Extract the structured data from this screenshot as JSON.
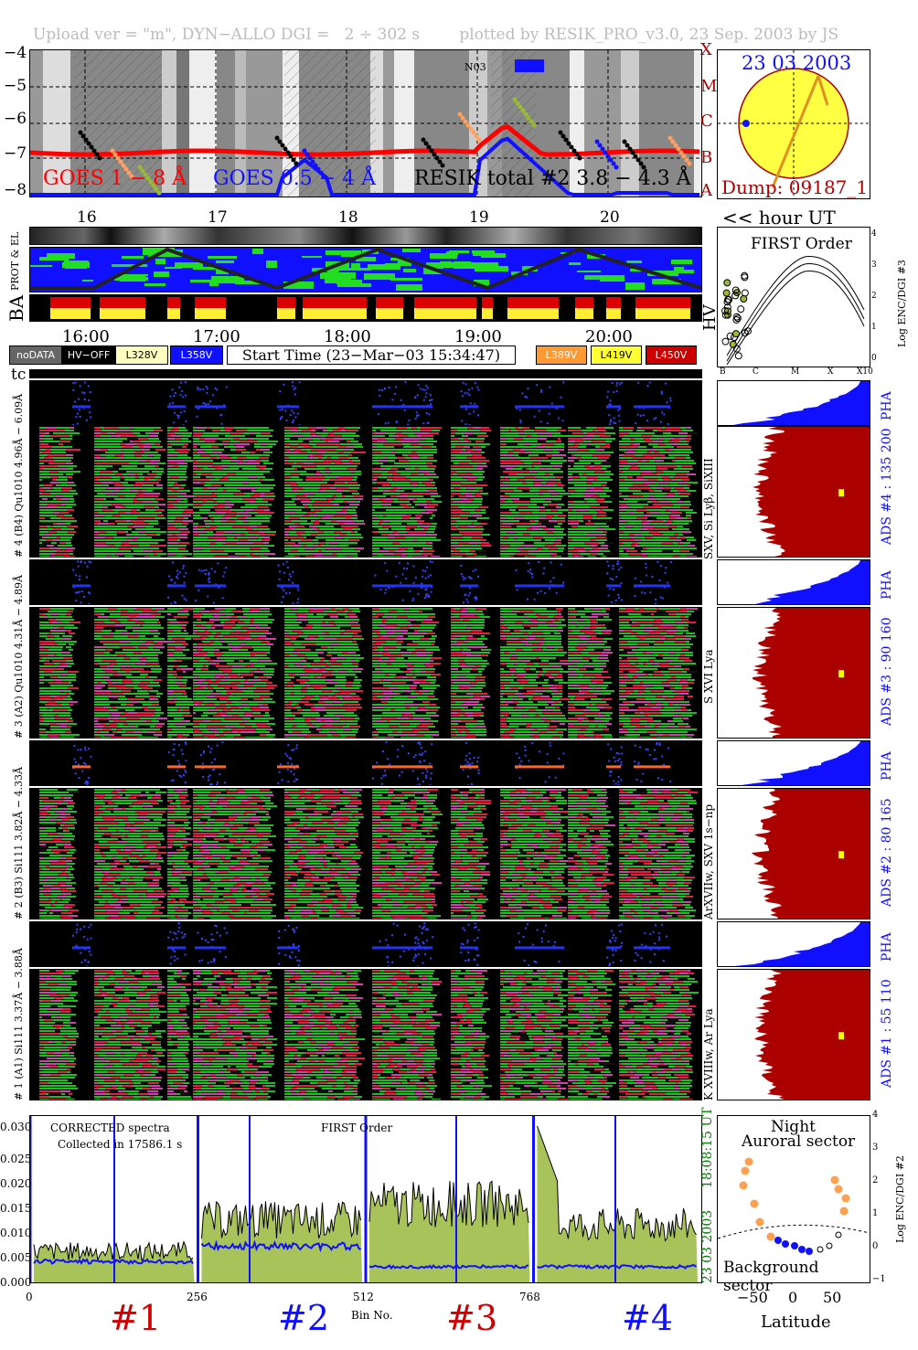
{
  "header": {
    "title": "Upload ver = \"m\", DYN−ALLO DGI =   2 ÷ 302 s        plotted by RESIK_PRO_v3.0, 23 Sep. 2003 by JS"
  },
  "goes": {
    "yticks": [
      "−4",
      "−5",
      "−6",
      "−7",
      "−8"
    ],
    "classes": [
      "X",
      "M",
      "C",
      "B",
      "A"
    ],
    "legend_goes18": "GOES 1 − 8 Å",
    "legend_goes054": "GOES 0.5 − 4 Å",
    "legend_resik": "RESIK total #2  3.8 − 4.3 Å",
    "marker": "N03",
    "colors": {
      "goes18": "#ff0000",
      "goes054": "#1010ff",
      "resik": "#000000"
    }
  },
  "sun": {
    "date": "23 03 2003",
    "dump": "Dump: 09187_1",
    "fill": "#ffff44"
  },
  "hours_top": [
    "16",
    "17",
    "18",
    "19",
    "20"
  ],
  "hour_ut_label": "<< hour UT",
  "band_labels": {
    "prot_el": "PROT & EL",
    "ba": "BA",
    "hv": "HV",
    "tc": "tc"
  },
  "hours_mid": [
    "16:00",
    "17:00",
    "18:00",
    "19:00",
    "20:00"
  ],
  "legend": {
    "nodata": "noDATA",
    "hvoff": "HV−OFF",
    "l328": "L328V",
    "l358": "L358V",
    "start": "Start Time (23−Mar−03 15:34:47)",
    "l389": "L389V",
    "l419": "L419V",
    "l450": "L450V"
  },
  "first_order": {
    "title": "FIRST Order",
    "yaxis": "Log ENC/DGI #3",
    "yticks": [
      "0",
      "1",
      "2",
      "3",
      "4"
    ],
    "xticks": [
      "B",
      "C",
      "M",
      "X",
      "X10"
    ]
  },
  "channels": [
    {
      "pha_label": "# 4 (B4)  Qu1010  4.96Å − 6.09Å",
      "ads_label": "ADS #4 :   135 200",
      "lines": "SXV, Si Lyβ, SiXIII"
    },
    {
      "pha_label": "# 3 (A2)  Qu1010  4.31Å − 4.89Å",
      "ads_label": "ADS #3 :    90 160",
      "lines": "S XVI Lya"
    },
    {
      "pha_label": "# 2 (B3)  Si111  3.82Å − 4.33Å",
      "ads_label": "ADS #2 :    80 165",
      "lines": "ArXVIIw, SXV 1s−np"
    },
    {
      "pha_label": "# 1 (A1)  Si111  3.37Å − 3.88Å",
      "ads_label": "ADS #1 :    55 110",
      "lines": "K XVIIIw, Ar Lya"
    }
  ],
  "pha_label": "PHA",
  "spectrum": {
    "title_left": "CORRECTED spectra",
    "collected": "Collected in 17586.1 s",
    "title_mid": "FIRST Order",
    "time_right": "18:08:15 UT",
    "date_right": "23 03 2003",
    "yticks": [
      "0.000",
      "0.005",
      "0.010",
      "0.015",
      "0.020",
      "0.025",
      "0.030"
    ],
    "xticks": [
      "0",
      "256",
      "512",
      "768"
    ],
    "xlabel": "Bin No."
  },
  "channel_marks": [
    {
      "label": "#1",
      "color": "#d00000"
    },
    {
      "label": "#2",
      "color": "#1010ff"
    },
    {
      "label": "#3",
      "color": "#d00000"
    },
    {
      "label": "#4",
      "color": "#1010ff"
    }
  ],
  "sector": {
    "title1": "Night",
    "title2": "Auroral sector",
    "bottom": "Background sector",
    "yaxis": "Log ENC/DGI #2",
    "yticks": [
      "−1",
      "0",
      "1",
      "2",
      "3",
      "4"
    ],
    "xticks": [
      "−50",
      "0",
      "50"
    ],
    "xlabel": "Latitude"
  },
  "chart_data": {
    "type": "line",
    "title": "CORRECTED spectra",
    "xlabel": "Bin No.",
    "ylabel": "",
    "xlim": [
      0,
      1024
    ],
    "ylim": [
      0,
      0.032
    ],
    "segments": [
      {
        "name": "#1",
        "x_range": [
          0,
          256
        ],
        "mean_corrected": 0.006,
        "mean_background": 0.004
      },
      {
        "name": "#2",
        "x_range": [
          256,
          512
        ],
        "mean_corrected": 0.012,
        "mean_background": 0.007
      },
      {
        "name": "#3",
        "x_range": [
          512,
          768
        ],
        "mean_corrected": 0.015,
        "mean_background": 0.003
      },
      {
        "name": "#4",
        "x_range": [
          768,
          1024
        ],
        "mean_corrected": 0.011,
        "mean_background": 0.003
      }
    ]
  }
}
